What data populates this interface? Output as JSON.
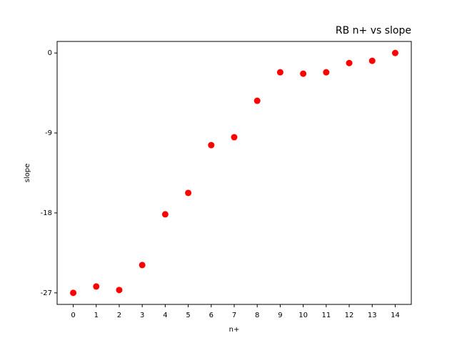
{
  "chart_data": {
    "type": "scatter",
    "title": "RB n+ vs slope",
    "x_label": "n+",
    "y_label": "slope",
    "x": [
      0,
      1,
      2,
      3,
      4,
      5,
      6,
      7,
      8,
      9,
      10,
      11,
      12,
      13,
      14
    ],
    "series": [
      {
        "name": "slope",
        "color": "#ff0000",
        "values": [
          -27.0,
          -26.28,
          -26.68,
          -23.87,
          -18.16,
          -15.75,
          -10.37,
          -9.48,
          -5.38,
          -2.17,
          -2.33,
          -2.17,
          -1.13,
          -0.88,
          0
        ]
      }
    ],
    "xlim": [
      -0.7,
      14.7
    ],
    "ylim": [
      -28.3,
      1.3
    ],
    "xticks": [
      0,
      1,
      2,
      3,
      4,
      5,
      6,
      7,
      8,
      9,
      10,
      11,
      12,
      13,
      14
    ],
    "yticks": [
      -27,
      -18,
      -9,
      0
    ],
    "grid": false
  }
}
